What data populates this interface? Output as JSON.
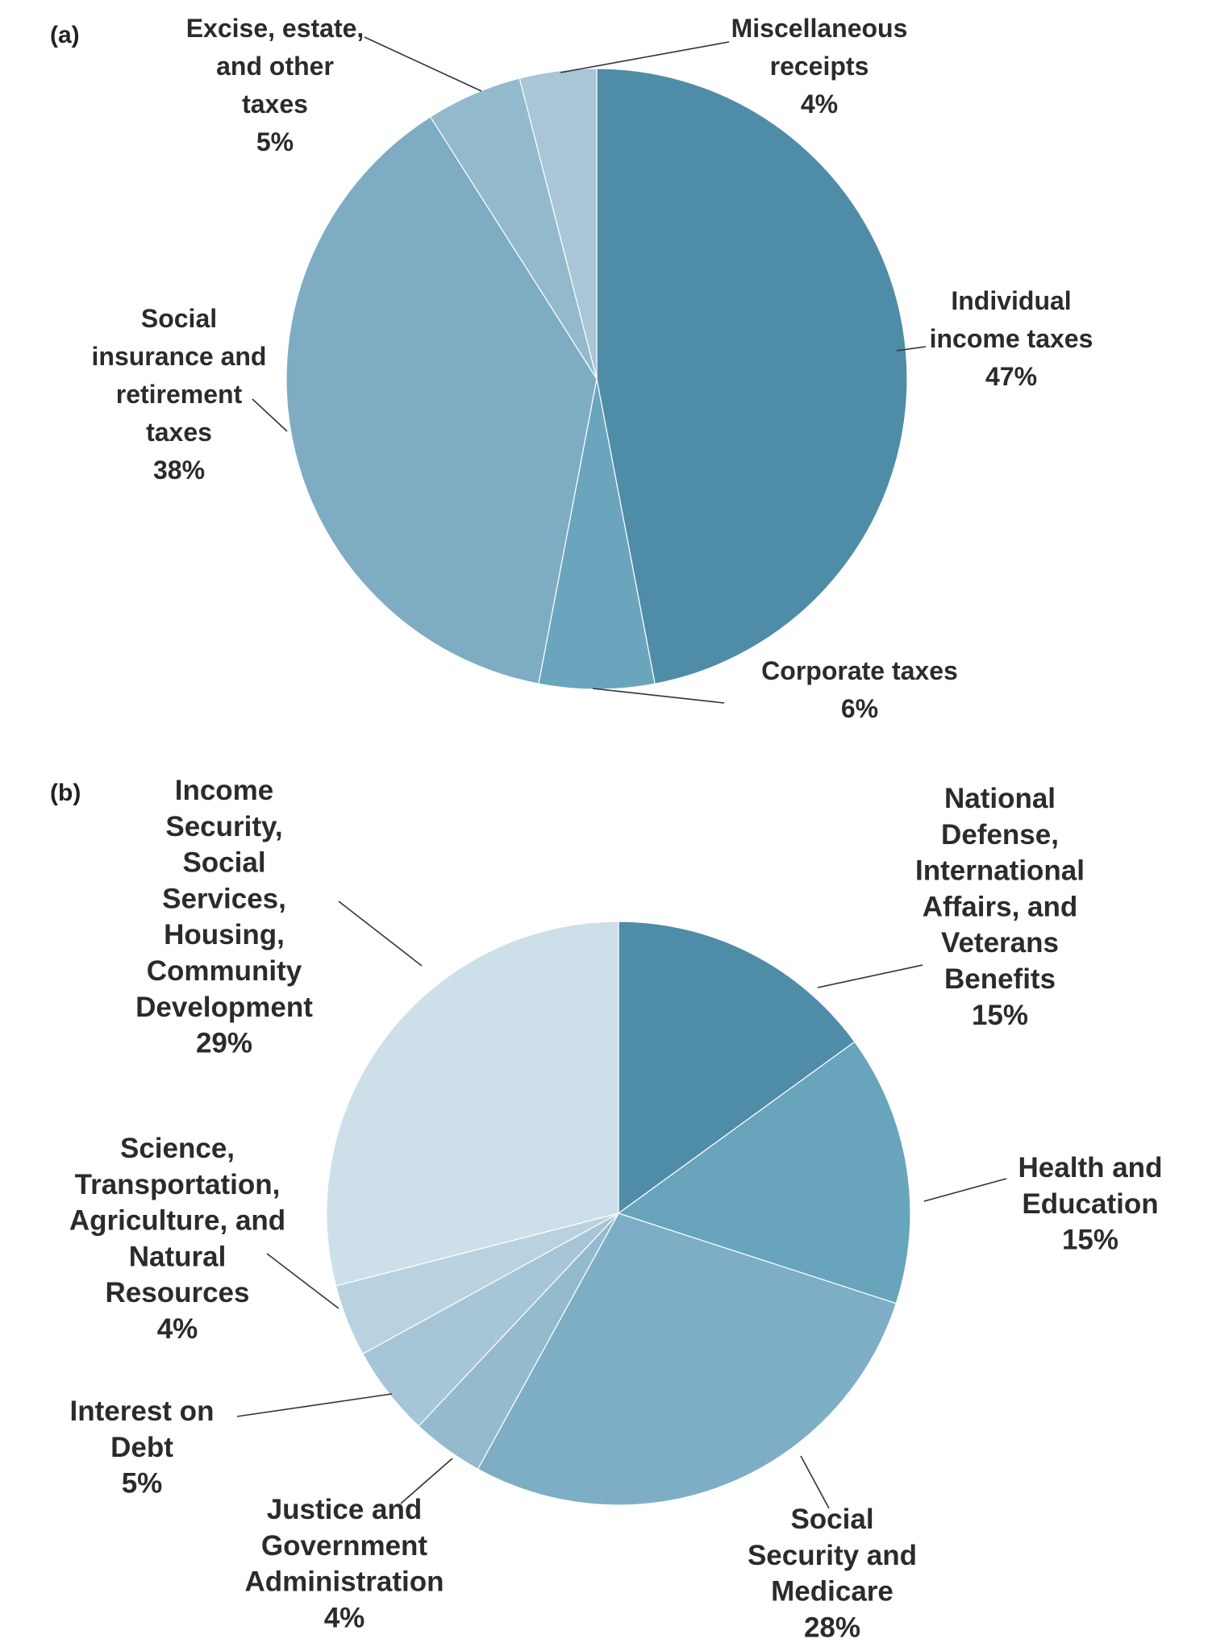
{
  "chart_data": [
    {
      "type": "pie",
      "panel_label": "(a)",
      "start_angle_deg": 0,
      "direction": "clockwise",
      "slices": [
        {
          "name": "Individual income taxes",
          "label_lines": [
            "Individual",
            "income taxes"
          ],
          "value": 47,
          "pct_label": "47%",
          "color": "#4f8ca8"
        },
        {
          "name": "Corporate taxes",
          "label_lines": [
            "Corporate taxes"
          ],
          "value": 6,
          "pct_label": "6%",
          "color": "#6aa5bd"
        },
        {
          "name": "Social insurance and retirement taxes",
          "label_lines": [
            "Social",
            "insurance and",
            "retirement",
            "taxes"
          ],
          "value": 38,
          "pct_label": "38%",
          "color": "#7eacc3"
        },
        {
          "name": "Excise, estate, and other taxes",
          "label_lines": [
            "Excise, estate,",
            "and other",
            "taxes"
          ],
          "value": 5,
          "pct_label": "5%",
          "color": "#93b9cd"
        },
        {
          "name": "Miscellaneous receipts",
          "label_lines": [
            "Miscellaneous",
            "receipts"
          ],
          "value": 4,
          "pct_label": "4%",
          "color": "#a9c6d7"
        }
      ]
    },
    {
      "type": "pie",
      "panel_label": "(b)",
      "start_angle_deg": 0,
      "direction": "clockwise",
      "slices": [
        {
          "name": "National Defense, International Affairs, and Veterans Benefits",
          "label_lines": [
            "National",
            "Defense,",
            "International",
            "Affairs, and",
            "Veterans",
            "Benefits"
          ],
          "value": 15,
          "pct_label": "15%",
          "color": "#4f8ca8"
        },
        {
          "name": "Health and Education",
          "label_lines": [
            "Health and",
            "Education"
          ],
          "value": 15,
          "pct_label": "15%",
          "color": "#68a4bc"
        },
        {
          "name": "Social Security and Medicare",
          "label_lines": [
            "Social",
            "Security and",
            "Medicare"
          ],
          "value": 28,
          "pct_label": "28%",
          "color": "#7eaec5"
        },
        {
          "name": "Justice and Government Administration",
          "label_lines": [
            "Justice and",
            "Government",
            "Administration"
          ],
          "value": 4,
          "pct_label": "4%",
          "color": "#94bacd"
        },
        {
          "name": "Interest on Debt",
          "label_lines": [
            "Interest on",
            "Debt"
          ],
          "value": 5,
          "pct_label": "5%",
          "color": "#a6c5d6"
        },
        {
          "name": "Science, Transportation, Agriculture, and Natural Resources",
          "label_lines": [
            "Science,",
            "Transportation,",
            "Agriculture, and",
            "Natural",
            "Resources"
          ],
          "value": 4,
          "pct_label": "4%",
          "color": "#bad2e0"
        },
        {
          "name": "Income Security, Social Services, Housing, Community Development",
          "label_lines": [
            "Income",
            "Security,",
            "Social",
            "Services,",
            "Housing,",
            "Community",
            "Development"
          ],
          "value": 29,
          "pct_label": "29%",
          "color": "#cddfe9"
        }
      ]
    }
  ]
}
